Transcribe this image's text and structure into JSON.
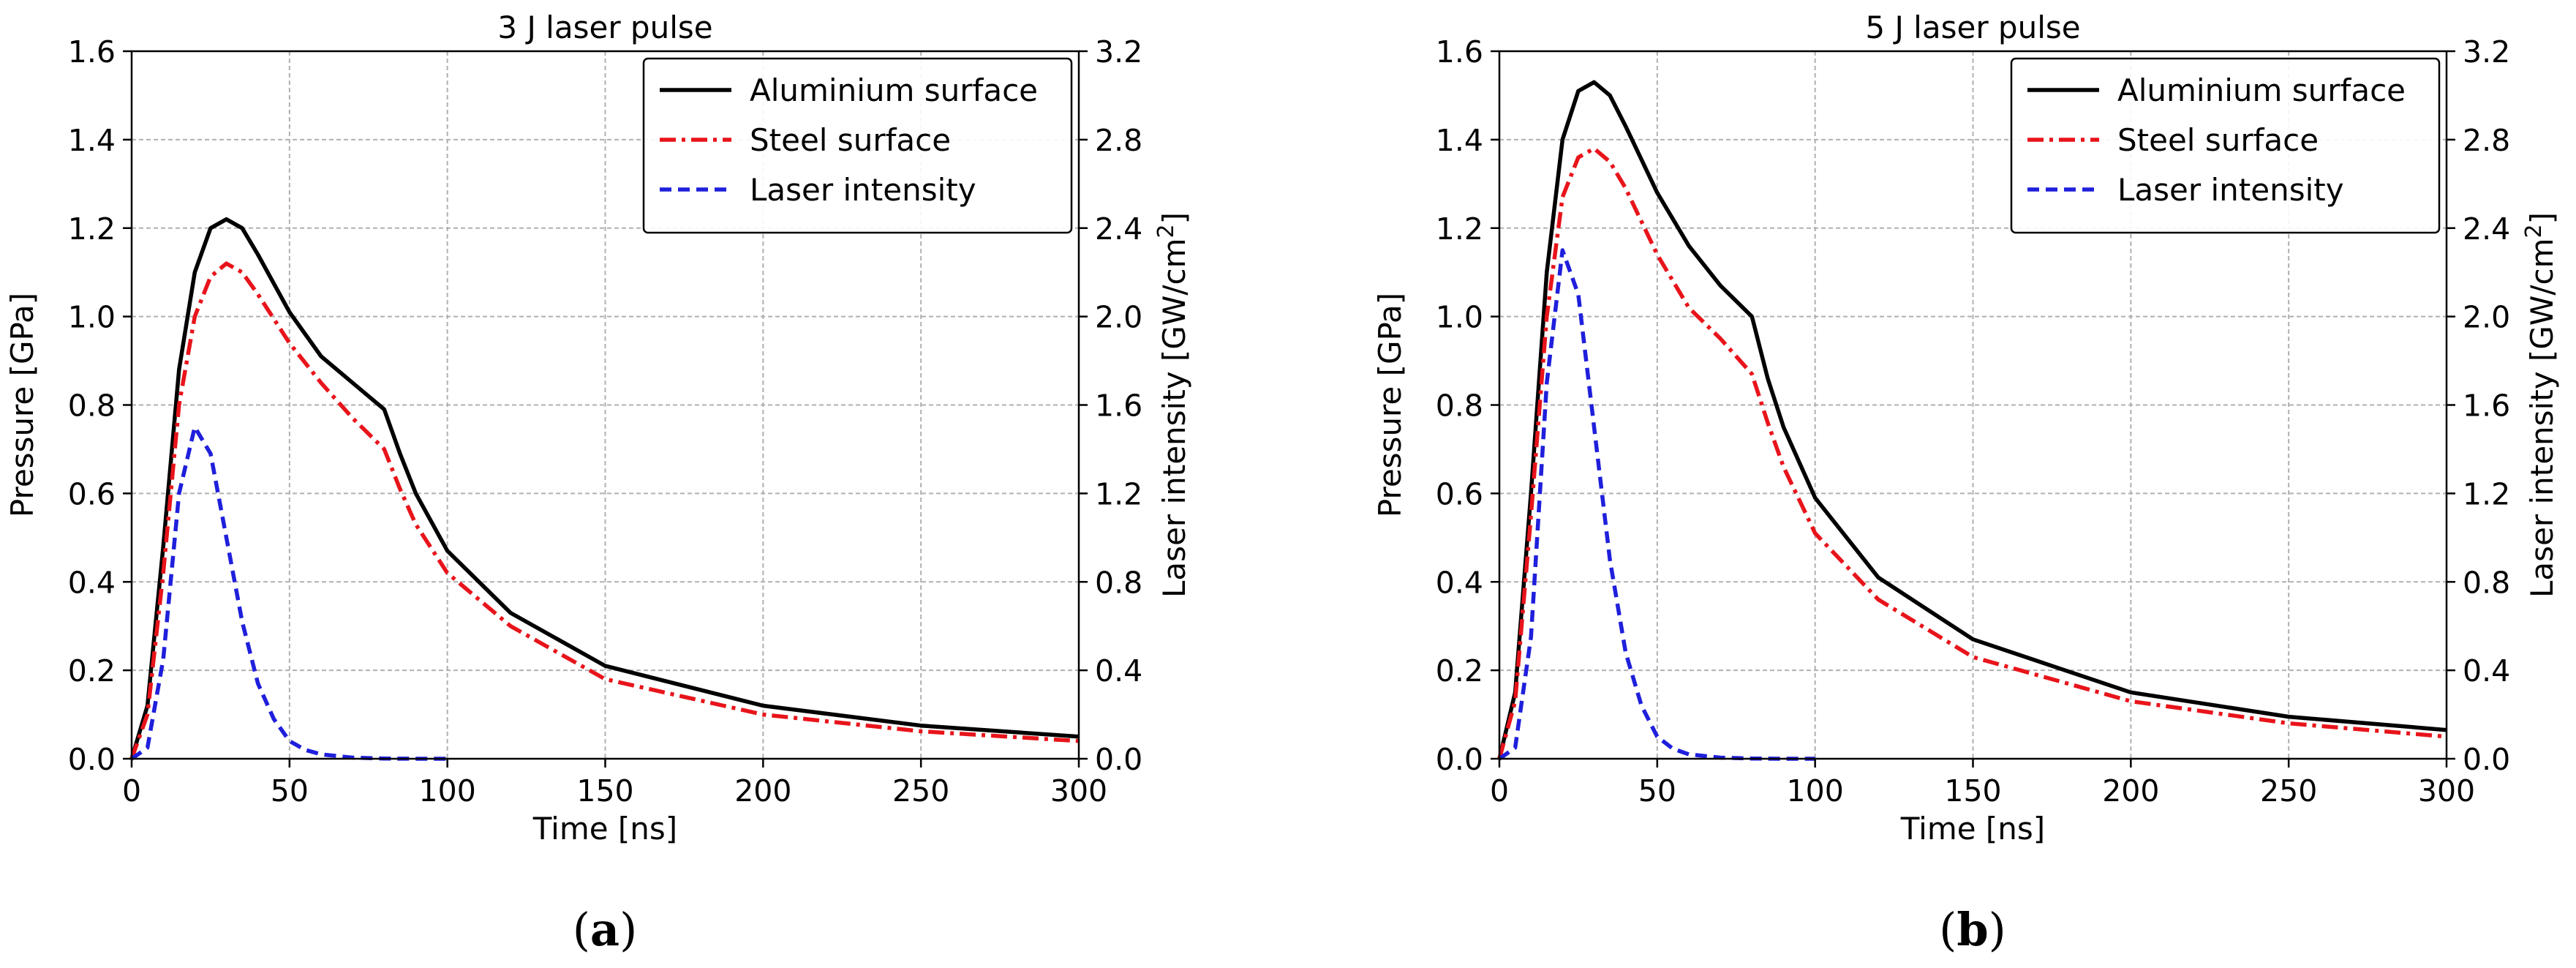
{
  "colors": {
    "aluminium": "#000000",
    "steel": "#e8141b",
    "laser": "#1f1fdc"
  },
  "chart_data": [
    {
      "type": "line",
      "title": "3 J laser pulse",
      "caption_letter": "a",
      "xlabel": "Time [ns]",
      "ylabel": "Pressure [GPa]",
      "y2label_prefix": "Laser intensity [GW/cm",
      "y2label_exp": "2",
      "y2label_suffix": "]",
      "xlim": [
        0,
        300
      ],
      "ylim": [
        0,
        1.6
      ],
      "y2lim": [
        0,
        3.2
      ],
      "x_ticks": [
        "0",
        "50",
        "100",
        "150",
        "200",
        "250",
        "300"
      ],
      "y_ticks": [
        "0.0",
        "0.2",
        "0.4",
        "0.6",
        "0.8",
        "1.0",
        "1.2",
        "1.4",
        "1.6"
      ],
      "y2_ticks": [
        "0.0",
        "0.4",
        "0.8",
        "1.2",
        "1.6",
        "2.0",
        "2.4",
        "2.8",
        "3.2"
      ],
      "legend": [
        "Aluminium surface",
        "Steel surface",
        "Laser intensity"
      ],
      "legend_position": "top-right",
      "grid": true,
      "series": [
        {
          "name": "Aluminium surface",
          "axis": "left",
          "style": "solid",
          "x": [
            0,
            5,
            10,
            15,
            20,
            25,
            30,
            35,
            40,
            50,
            60,
            70,
            80,
            85,
            90,
            100,
            120,
            150,
            200,
            250,
            300
          ],
          "y": [
            0,
            0.12,
            0.48,
            0.88,
            1.1,
            1.2,
            1.22,
            1.2,
            1.14,
            1.01,
            0.91,
            0.85,
            0.79,
            0.69,
            0.6,
            0.47,
            0.33,
            0.21,
            0.12,
            0.075,
            0.05
          ]
        },
        {
          "name": "Steel surface",
          "axis": "left",
          "style": "dashdot",
          "x": [
            0,
            5,
            10,
            15,
            20,
            25,
            30,
            35,
            40,
            50,
            60,
            70,
            80,
            85,
            90,
            100,
            120,
            150,
            200,
            250,
            300
          ],
          "y": [
            0,
            0.1,
            0.42,
            0.8,
            1.0,
            1.09,
            1.12,
            1.1,
            1.05,
            0.94,
            0.85,
            0.77,
            0.7,
            0.61,
            0.53,
            0.42,
            0.3,
            0.18,
            0.1,
            0.062,
            0.04
          ]
        },
        {
          "name": "Laser intensity",
          "axis": "right",
          "style": "dashed",
          "x": [
            0,
            5,
            10,
            15,
            20,
            25,
            30,
            35,
            40,
            45,
            50,
            55,
            60,
            70,
            80,
            90,
            100
          ],
          "y": [
            0,
            0.05,
            0.45,
            1.2,
            1.5,
            1.38,
            1.0,
            0.62,
            0.34,
            0.18,
            0.08,
            0.04,
            0.02,
            0.005,
            0.001,
            0,
            0
          ]
        }
      ]
    },
    {
      "type": "line",
      "title": "5 J laser pulse",
      "caption_letter": "b",
      "xlabel": "Time [ns]",
      "ylabel": "Pressure [GPa]",
      "y2label_prefix": "Laser intensity [GW/cm",
      "y2label_exp": "2",
      "y2label_suffix": "]",
      "xlim": [
        0,
        300
      ],
      "ylim": [
        0,
        1.6
      ],
      "y2lim": [
        0,
        3.2
      ],
      "x_ticks": [
        "0",
        "50",
        "100",
        "150",
        "200",
        "250",
        "300"
      ],
      "y_ticks": [
        "0.0",
        "0.2",
        "0.4",
        "0.6",
        "0.8",
        "1.0",
        "1.2",
        "1.4",
        "1.6"
      ],
      "y2_ticks": [
        "0.0",
        "0.4",
        "0.8",
        "1.2",
        "1.6",
        "2.0",
        "2.4",
        "2.8",
        "3.2"
      ],
      "legend": [
        "Aluminium surface",
        "Steel surface",
        "Laser intensity"
      ],
      "legend_position": "top-right",
      "grid": true,
      "series": [
        {
          "name": "Aluminium surface",
          "axis": "left",
          "style": "solid",
          "x": [
            0,
            5,
            10,
            15,
            20,
            25,
            30,
            35,
            40,
            50,
            60,
            70,
            80,
            85,
            90,
            100,
            120,
            150,
            200,
            250,
            300
          ],
          "y": [
            0,
            0.15,
            0.6,
            1.1,
            1.4,
            1.51,
            1.53,
            1.5,
            1.43,
            1.28,
            1.16,
            1.07,
            1.0,
            0.86,
            0.75,
            0.59,
            0.41,
            0.27,
            0.15,
            0.095,
            0.065
          ]
        },
        {
          "name": "Steel surface",
          "axis": "left",
          "style": "dashdot",
          "x": [
            0,
            5,
            10,
            15,
            20,
            25,
            30,
            35,
            40,
            50,
            60,
            70,
            80,
            85,
            90,
            100,
            120,
            150,
            200,
            250,
            300
          ],
          "y": [
            0,
            0.13,
            0.55,
            1.0,
            1.27,
            1.36,
            1.38,
            1.35,
            1.29,
            1.14,
            1.02,
            0.95,
            0.87,
            0.76,
            0.66,
            0.51,
            0.36,
            0.23,
            0.13,
            0.08,
            0.05
          ]
        },
        {
          "name": "Laser intensity",
          "axis": "right",
          "style": "dashed",
          "x": [
            0,
            5,
            10,
            15,
            20,
            25,
            30,
            35,
            40,
            45,
            50,
            55,
            60,
            70,
            80,
            90,
            100
          ],
          "y": [
            0,
            0.05,
            0.55,
            1.7,
            2.3,
            2.1,
            1.5,
            0.9,
            0.48,
            0.24,
            0.1,
            0.045,
            0.02,
            0.005,
            0.001,
            0,
            0
          ]
        }
      ]
    }
  ]
}
